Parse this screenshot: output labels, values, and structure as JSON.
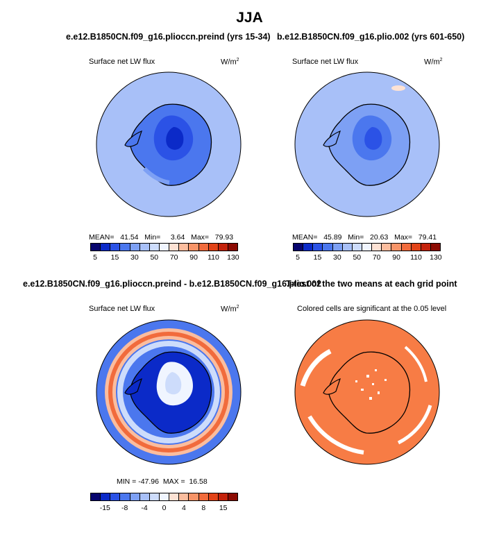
{
  "figure": {
    "title": "JJA"
  },
  "panels": {
    "p1": {
      "title": "e.e12.B1850CN.f09_g16.plioccn.preind (yrs 15-34)",
      "field": "Surface net LW flux",
      "units": "W/m",
      "units_sup": "2",
      "stats": "MEAN=   41.54   Min=     3.64   Max=   79.93"
    },
    "p2": {
      "title": "b.e12.B1850CN.f09_g16.plio.002 (yrs 601-650)",
      "field": "Surface net LW flux",
      "units": "W/m",
      "units_sup": "2",
      "stats": "MEAN=   45.89   Min=   20.63   Max=   79.41"
    },
    "p3": {
      "title": "e.e12.B1850CN.f09_g16.plioccn.preind - b.e12.B1850CN.f09_g16.plio.002",
      "field": "Surface net LW flux",
      "units": "W/m",
      "units_sup": "2",
      "stats": "MIN = -47.96  MAX =  16.58"
    },
    "p4": {
      "title": "T-test of the two means at each grid point",
      "field": "Colored cells are significant at the 0.05 level"
    }
  },
  "colorbar_top": {
    "tick_labels": [
      "5",
      "15",
      "30",
      "50",
      "70",
      "90",
      "110",
      "130"
    ],
    "colors": [
      "#07056e",
      "#0b2ac8",
      "#2b52e6",
      "#4b77ee",
      "#7da0f4",
      "#a8c0f8",
      "#cddcfb",
      "#f0f5ff",
      "#fde2d4",
      "#fbbd9e",
      "#f79468",
      "#f16b3c",
      "#e24318",
      "#c4220b",
      "#8c0b03"
    ]
  },
  "colorbar_bottom": {
    "tick_labels": [
      "-15",
      "-8",
      "-4",
      "0",
      "4",
      "8",
      "15"
    ],
    "colors": [
      "#07056e",
      "#0b2ac8",
      "#2b52e6",
      "#4b77ee",
      "#7da0f4",
      "#a8c0f8",
      "#cddcfb",
      "#f0f5ff",
      "#fde2d4",
      "#fbbd9e",
      "#f79468",
      "#f16b3c",
      "#e24318",
      "#c4220b",
      "#8c0b03"
    ]
  },
  "significance_color": "#f77c45"
}
